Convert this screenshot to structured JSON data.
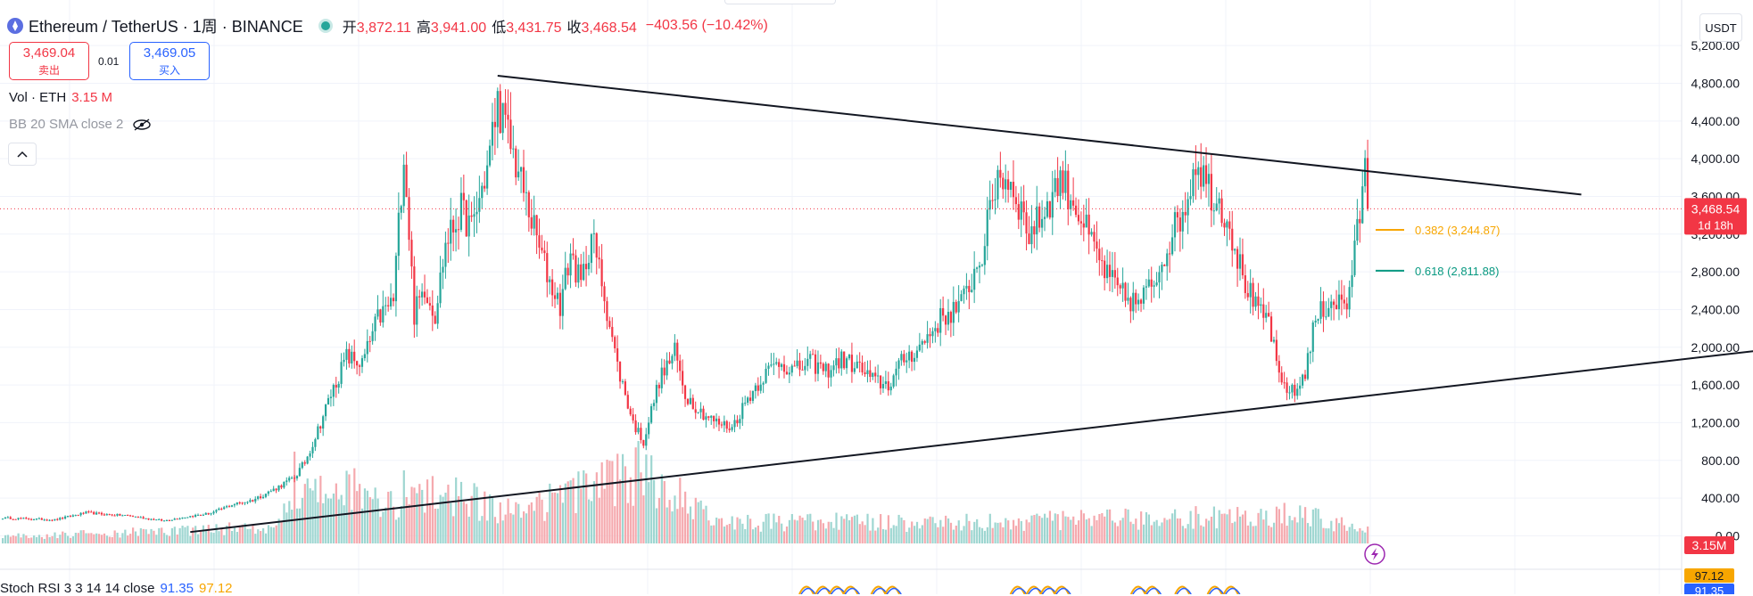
{
  "header": {
    "symbol": "Ethereum / TetherUS · 1周 · BINANCE",
    "open_label": "开",
    "open": "3,872.11",
    "high_label": "高",
    "high": "3,941.00",
    "low_label": "低",
    "low": "3,431.75",
    "close_label": "收",
    "close": "3,468.54",
    "change": "−403.56 (−10.42%)"
  },
  "trade": {
    "sell_price": "3,469.04",
    "sell_label": "卖出",
    "spread": "0.01",
    "buy_price": "3,469.05",
    "buy_label": "买入"
  },
  "indicators": {
    "vol_label": "Vol · ETH",
    "vol_value": "3.15 M",
    "bb_label": "BB 20 SMA close 2",
    "stoch_label": "Stoch RSI 3 3 14 14 close",
    "stoch_k": "91.35",
    "stoch_d": "97.12"
  },
  "currency": "USDT",
  "colors": {
    "up": "#26a69a",
    "down": "#f23645",
    "fib382": "#f7a600",
    "fib618": "#089981",
    "stoch_k": "#2962ff",
    "stoch_d": "#f7a600",
    "vol_up": "#9ed6d1",
    "vol_down": "#f5a9ae"
  },
  "icons": {
    "eye": "eye-crossed-icon",
    "collapse": "chevron-up-icon",
    "lightning": "lightning-icon"
  },
  "chart_data": {
    "type": "candlestick",
    "symbol": "ETHUSDT",
    "interval": "1W",
    "y_ticks": [
      0,
      400,
      800,
      1200,
      1600,
      2000,
      2400,
      2800,
      3200,
      3600,
      4000,
      4400,
      4800,
      5200
    ],
    "y_tick_labels": [
      "0.00",
      "400.00",
      "800.00",
      "1,200.00",
      "1,600.00",
      "2,000.00",
      "2,400.00",
      "2,800.00",
      "3,200.00",
      "3,600.00",
      "4,000.00",
      "4,400.00",
      "4,800.00",
      "5,200.00"
    ],
    "ylim": [
      -100,
      5400
    ],
    "grid": true,
    "price_anchors": [
      [
        0,
        190
      ],
      [
        20,
        170
      ],
      [
        32,
        245
      ],
      [
        40,
        225
      ],
      [
        48,
        215
      ],
      [
        56,
        180
      ],
      [
        62,
        160
      ],
      [
        70,
        200
      ],
      [
        80,
        240
      ],
      [
        88,
        330
      ],
      [
        96,
        380
      ],
      [
        104,
        490
      ],
      [
        112,
        620
      ],
      [
        116,
        780
      ],
      [
        120,
        1050
      ],
      [
        126,
        1500
      ],
      [
        132,
        1900
      ],
      [
        138,
        1820
      ],
      [
        144,
        2300
      ],
      [
        150,
        2500
      ],
      [
        154,
        4100
      ],
      [
        158,
        2350
      ],
      [
        162,
        2650
      ],
      [
        166,
        2350
      ],
      [
        170,
        3100
      ],
      [
        176,
        3450
      ],
      [
        180,
        3250
      ],
      [
        186,
        3900
      ],
      [
        190,
        4600
      ],
      [
        196,
        4050
      ],
      [
        200,
        3650
      ],
      [
        206,
        3050
      ],
      [
        210,
        2700
      ],
      [
        214,
        2450
      ],
      [
        218,
        3000
      ],
      [
        222,
        2650
      ],
      [
        226,
        3200
      ],
      [
        230,
        2700
      ],
      [
        236,
        1800
      ],
      [
        242,
        1200
      ],
      [
        246,
        1000
      ],
      [
        252,
        1650
      ],
      [
        258,
        1950
      ],
      [
        262,
        1500
      ],
      [
        268,
        1320
      ],
      [
        274,
        1200
      ],
      [
        280,
        1150
      ],
      [
        286,
        1460
      ],
      [
        292,
        1700
      ],
      [
        298,
        1850
      ],
      [
        304,
        1750
      ],
      [
        310,
        1840
      ],
      [
        316,
        1750
      ],
      [
        322,
        1870
      ],
      [
        328,
        1800
      ],
      [
        334,
        1650
      ],
      [
        340,
        1600
      ],
      [
        346,
        1880
      ],
      [
        352,
        2000
      ],
      [
        360,
        2300
      ],
      [
        368,
        2450
      ],
      [
        376,
        3000
      ],
      [
        382,
        3850
      ],
      [
        388,
        3700
      ],
      [
        394,
        3200
      ],
      [
        400,
        3450
      ],
      [
        406,
        3800
      ],
      [
        412,
        3500
      ],
      [
        418,
        3100
      ],
      [
        424,
        2750
      ],
      [
        430,
        2550
      ],
      [
        436,
        2450
      ],
      [
        442,
        2700
      ],
      [
        448,
        3150
      ],
      [
        454,
        3500
      ],
      [
        458,
        4000
      ],
      [
        464,
        3650
      ],
      [
        470,
        3400
      ],
      [
        476,
        2750
      ],
      [
        482,
        2350
      ],
      [
        486,
        2300
      ],
      [
        490,
        1650
      ],
      [
        496,
        1500
      ],
      [
        500,
        1750
      ],
      [
        504,
        2300
      ],
      [
        510,
        2500
      ],
      [
        516,
        2450
      ],
      [
        520,
        3200
      ],
      [
        523,
        3870
      ],
      [
        524,
        3469
      ]
    ],
    "volume_peaks": [
      [
        0,
        0.08
      ],
      [
        40,
        0.12
      ],
      [
        104,
        0.2
      ],
      [
        112,
        0.55
      ],
      [
        132,
        0.65
      ],
      [
        154,
        0.45
      ],
      [
        170,
        0.6
      ],
      [
        196,
        0.35
      ],
      [
        244,
        0.82
      ],
      [
        280,
        0.25
      ],
      [
        380,
        0.25
      ],
      [
        450,
        0.3
      ],
      [
        500,
        0.35
      ],
      [
        524,
        0.15
      ]
    ],
    "trendlines": [
      {
        "from": [
          190,
          4880
        ],
        "to": [
          606,
          3620
        ]
      },
      {
        "from": [
          72,
          40
        ],
        "to": [
          710,
          2080
        ]
      }
    ],
    "fib_levels": [
      {
        "ratio": "0.382",
        "price": 3244.87,
        "label": "0.382 (3,244.87)"
      },
      {
        "ratio": "0.618",
        "price": 2811.88,
        "label": "0.618 (2,811.88)"
      }
    ],
    "last_price": {
      "value": 3468.54,
      "label": "3,468.54",
      "countdown": "1d 18h"
    },
    "volume_badge": "3.15M",
    "stoch_badges": {
      "d": "97.12",
      "k": "91.35"
    }
  }
}
